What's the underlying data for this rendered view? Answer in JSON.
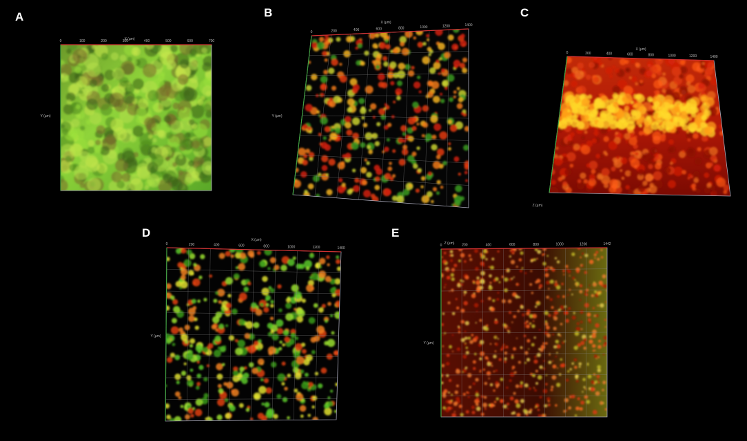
{
  "panels": [
    {
      "label": "A",
      "x_axis_label": "X (µm)",
      "y_axis_label": "Y (µm)",
      "x_ticks": [
        "0",
        "100",
        "200",
        "300",
        "400",
        "500",
        "600",
        "700"
      ]
    },
    {
      "label": "B",
      "x_axis_label": "X (µm)",
      "y_axis_label": "Y (µm)",
      "x_ticks": [
        "0",
        "200",
        "400",
        "600",
        "800",
        "1000",
        "1200",
        "1400"
      ]
    },
    {
      "label": "C",
      "x_axis_label": "X (µm)",
      "y_axis_label": "Z (µm)",
      "x_ticks": [
        "0",
        "200",
        "400",
        "600",
        "800",
        "1000",
        "1200",
        "1400"
      ]
    },
    {
      "label": "D",
      "x_axis_label": "X (µm)",
      "y_axis_label": "Y (µm)",
      "x_ticks": [
        "0",
        "200",
        "400",
        "600",
        "800",
        "1000",
        "1200",
        "1400"
      ]
    },
    {
      "label": "E",
      "x_axis_label": "Z (µm)",
      "y_axis_label": "Y (µm)",
      "x_ticks": [
        "0",
        "200",
        "400",
        "600",
        "800",
        "1000",
        "1200",
        "1442"
      ]
    }
  ]
}
